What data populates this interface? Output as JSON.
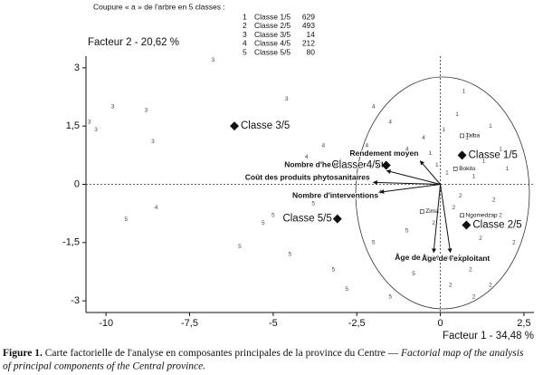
{
  "chart_data": {
    "type": "factor-map",
    "legend_title": "Coupure « a » de l'arbre en 5 classes :",
    "legend_rows": [
      [
        "1",
        "Classe 1/5",
        629
      ],
      [
        "2",
        "Classe 2/5",
        493
      ],
      [
        "3",
        "Classe 3/5",
        14
      ],
      [
        "4",
        "Classe 4/5",
        212
      ],
      [
        "5",
        "Classe 5/5",
        80
      ]
    ],
    "x_label": "Facteur 1 - 34,48 %",
    "y_label": "Facteur 2 - 20,62 %",
    "xlim": [
      -10.6,
      2.8
    ],
    "ylim": [
      -3.3,
      3.3
    ],
    "xticks": [
      {
        "value": -10,
        "label": "-10"
      },
      {
        "value": -7.5,
        "label": "-7,5"
      },
      {
        "value": -5,
        "label": "-5"
      },
      {
        "value": -2.5,
        "label": "-2,5"
      },
      {
        "value": 0,
        "label": "0"
      },
      {
        "value": 2.5,
        "label": "2,5"
      }
    ],
    "yticks": [
      {
        "value": 3,
        "label": "3"
      },
      {
        "value": 1.5,
        "label": "1,5"
      },
      {
        "value": 0,
        "label": "0"
      },
      {
        "value": -1.5,
        "label": "-1,5"
      },
      {
        "value": -3,
        "label": "-3"
      }
    ],
    "color": "#222222",
    "series": [
      {
        "marker": "1",
        "x": [
          0.2,
          0.8,
          1.3,
          0.5,
          1.8,
          -0.3,
          1.0,
          0.1,
          1.5,
          2.0,
          0.7,
          -0.1
        ],
        "y": [
          0.3,
          1.2,
          0.6,
          1.8,
          0.9,
          0.8,
          0.2,
          1.4,
          1.5,
          0.4,
          2.4,
          0.5
        ]
      },
      {
        "marker": "2",
        "x": [
          0.4,
          1.2,
          0.9,
          1.8,
          0.2,
          1.5,
          0.6,
          2.2,
          -0.2,
          1.0,
          0.3,
          1.6
        ],
        "y": [
          -0.6,
          -1.4,
          -2.2,
          -0.8,
          -1.9,
          -2.6,
          -0.3,
          -1.5,
          -1.0,
          -2.9,
          -2.6,
          -0.4
        ]
      },
      {
        "marker": "3",
        "x": [
          -10.5,
          -10.3,
          -8.8,
          -8.6,
          -6.8,
          -4.6,
          -9.8
        ],
        "y": [
          1.6,
          1.4,
          1.9,
          1.1,
          3.2,
          2.2,
          2.0
        ]
      },
      {
        "marker": "4",
        "x": [
          -2.2,
          -3.0,
          -1.5,
          -2.8,
          -1.0,
          -3.5,
          -0.5,
          -2.0,
          -4.0,
          -1.8,
          -8.5
        ],
        "y": [
          1.0,
          0.6,
          1.6,
          0.2,
          0.9,
          1.0,
          1.2,
          2.0,
          0.7,
          -0.2,
          -0.6
        ]
      },
      {
        "marker": "5",
        "x": [
          -5.3,
          -6.0,
          -4.5,
          -3.2,
          -2.8,
          -1.5,
          -3.8,
          -0.8,
          -2.0,
          -9.4,
          -5.0,
          -1.0
        ],
        "y": [
          -1.0,
          -1.6,
          -1.8,
          -2.2,
          -2.7,
          -2.9,
          -0.5,
          -2.3,
          -1.5,
          -0.9,
          -0.8,
          -1.2
        ]
      }
    ],
    "classes": [
      {
        "name": "Classe 1/5",
        "x": 0.65,
        "y": 0.75
      },
      {
        "name": "Classe 2/5",
        "x": 0.78,
        "y": -1.05
      },
      {
        "name": "Classe 3/5",
        "x": -6.16,
        "y": 1.5
      },
      {
        "name": "Classe 4/5",
        "x": -1.62,
        "y": 0.49
      },
      {
        "name": "Classe 5/5",
        "x": -3.08,
        "y": -0.89
      }
    ],
    "variables": [
      {
        "name": "Rendement moyen",
        "x": -0.6,
        "y": 0.6
      },
      {
        "name": "Nombre d'heures de travail",
        "x": -1.6,
        "y": 0.35
      },
      {
        "name": "Coût des produits phytosanitaires",
        "x": -2.0,
        "y": 0.05
      },
      {
        "name": "Nombre d'interventions",
        "x": -1.8,
        "y": -0.2
      },
      {
        "name": "Âge de la cacaoyère",
        "x": -0.2,
        "y": -1.75
      },
      {
        "name": "Âge de l'exploitant",
        "x": 0.3,
        "y": -1.75
      }
    ],
    "towns": [
      {
        "name": "Talba",
        "x": 0.65,
        "y": 1.25
      },
      {
        "name": "Bokito",
        "x": 0.45,
        "y": 0.4
      },
      {
        "name": "Zima",
        "x": -0.55,
        "y": -0.7
      },
      {
        "name": "Ngomedzap",
        "x": 0.65,
        "y": -0.8
      }
    ]
  },
  "caption": {
    "label": "Figure 1.",
    "text_fr": "Carte factorielle de l'analyse en composantes principales de la province du Centre —",
    "text_en_1": "Factorial map of the analysis",
    "text_en_2": "of principal components of the Central province."
  }
}
